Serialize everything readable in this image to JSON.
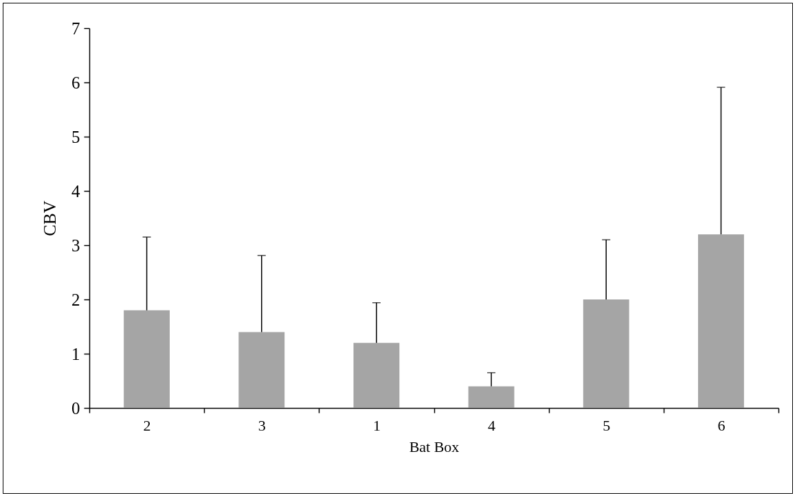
{
  "chart_data": {
    "type": "bar",
    "xlabel": "Bat Box",
    "ylabel": "CBV",
    "categories": [
      "2",
      "3",
      "1",
      "4",
      "5",
      "6"
    ],
    "values": [
      1.8,
      1.4,
      1.2,
      0.4,
      2.0,
      3.2
    ],
    "errors": [
      [
        1.8,
        3.15
      ],
      [
        1.4,
        2.81
      ],
      [
        1.2,
        1.94
      ],
      [
        0.4,
        0.65
      ],
      [
        2.0,
        3.1
      ],
      [
        3.2,
        5.91
      ]
    ],
    "color": "#a5a5a5",
    "ylim": [
      0,
      7
    ],
    "yticks": [
      0,
      1,
      2,
      3,
      4,
      5,
      6,
      7
    ],
    "grid": false
  }
}
